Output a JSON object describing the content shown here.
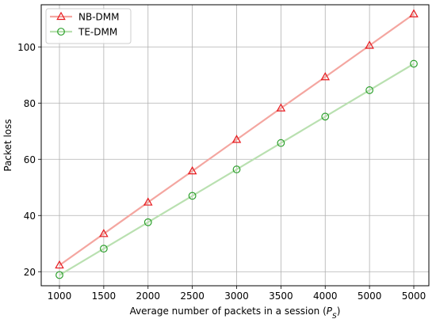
{
  "chart_data": {
    "type": "line",
    "categories": [
      "1000",
      "1500",
      "2000",
      "2500",
      "3000",
      "3500",
      "4000",
      "5000",
      "5000"
    ],
    "xlabel_main": "Average number of packets in a session (",
    "xlabel_var": "P",
    "xlabel_sub": "S",
    "xlabel_end": ")",
    "ylabel": "Packet loss",
    "ylim": [
      15,
      115
    ],
    "yticks": [
      20,
      40,
      60,
      80,
      100
    ],
    "grid": true,
    "legend": "top-left",
    "series": [
      {
        "name": "NB-DMM",
        "values": [
          22.3,
          33.5,
          44.7,
          55.8,
          67.0,
          78.2,
          89.3,
          100.5,
          111.7
        ],
        "color": "#f4a6a0",
        "marker_color": "#e8191e",
        "marker": "triangle"
      },
      {
        "name": "TE-DMM",
        "values": [
          18.8,
          28.2,
          37.6,
          47.0,
          56.4,
          65.8,
          75.2,
          84.6,
          94.0
        ],
        "color": "#b9e0b0",
        "marker_color": "#2ca02c",
        "marker": "circle"
      }
    ]
  }
}
